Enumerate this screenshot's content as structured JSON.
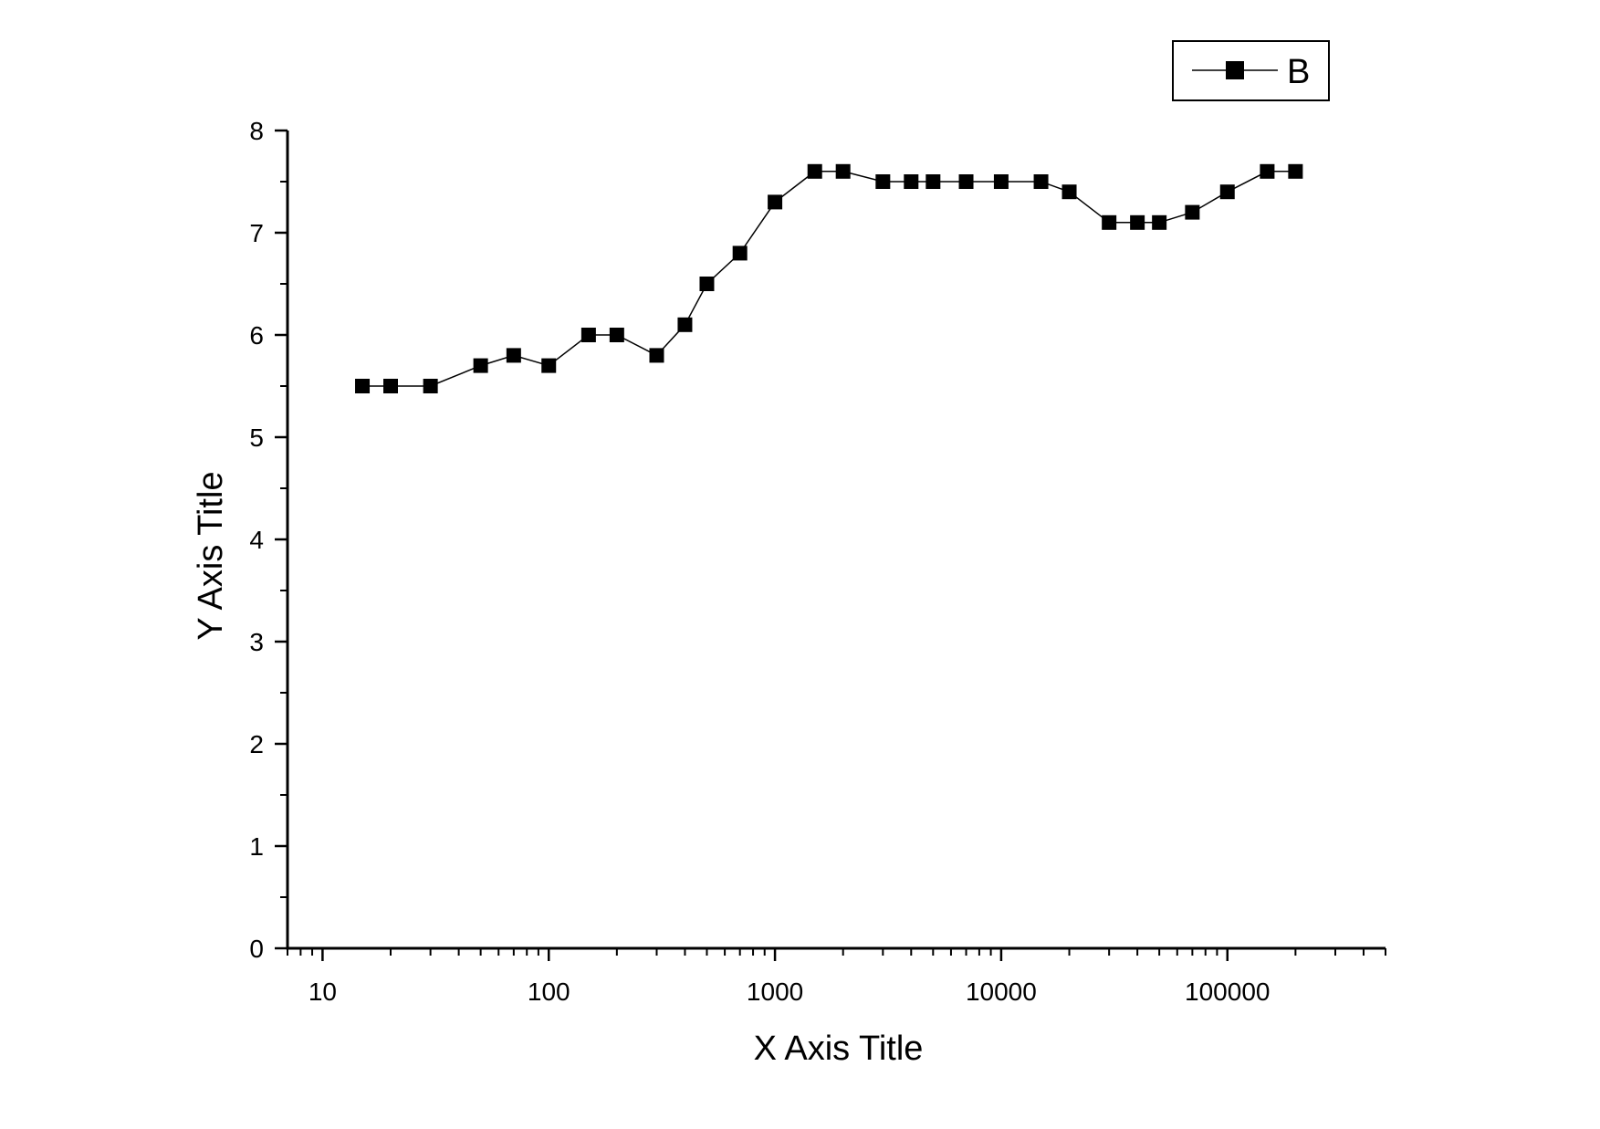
{
  "chart_data": {
    "type": "line",
    "xlabel": "X Axis Title",
    "ylabel": "Y Axis Title",
    "xscale": "log",
    "xlim": [
      7,
      500000
    ],
    "ylim": [
      0,
      8
    ],
    "x_ticks": [
      "10",
      "100",
      "1000",
      "10000",
      "100000"
    ],
    "y_ticks": [
      "0",
      "1",
      "2",
      "3",
      "4",
      "5",
      "6",
      "7",
      "8"
    ],
    "grid": false,
    "legend_position": "top-right",
    "series": [
      {
        "name": "B",
        "marker": "square",
        "color": "#000000",
        "x": [
          15,
          20,
          30,
          50,
          70,
          100,
          150,
          200,
          300,
          400,
          500,
          700,
          1000,
          1500,
          2000,
          3000,
          4000,
          5000,
          7000,
          10000,
          15000,
          20000,
          30000,
          40000,
          50000,
          70000,
          100000,
          150000,
          200000
        ],
        "y": [
          5.5,
          5.5,
          5.5,
          5.7,
          5.8,
          5.7,
          6.0,
          6.0,
          5.8,
          6.1,
          6.5,
          6.8,
          7.3,
          7.6,
          7.6,
          7.5,
          7.5,
          7.5,
          7.5,
          7.5,
          7.5,
          7.4,
          7.1,
          7.1,
          7.1,
          7.2,
          7.4,
          7.6,
          7.6
        ]
      }
    ]
  }
}
